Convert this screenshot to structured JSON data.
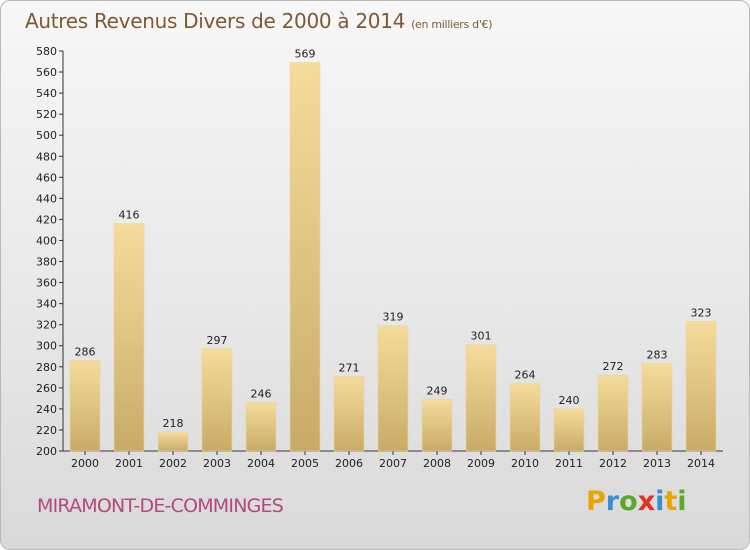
{
  "title": "Autres Revenus Divers de 2000 à 2014",
  "subtitle": "(en milliers d'€)",
  "place_name": "MIRAMONT-DE-COMMINGES",
  "logo": {
    "letters": [
      "P",
      "r",
      "o",
      "x",
      "i",
      "t",
      "i"
    ],
    "colors": [
      "#e8a400",
      "#3a8fd1",
      "#5aa82c",
      "#e0301e",
      "#3a8fd1",
      "#e8a400",
      "#5aa82c"
    ]
  },
  "chart_data": {
    "type": "bar",
    "title": "Autres Revenus Divers de 2000 à 2014",
    "subtitle": "(en milliers d'€)",
    "xlabel": "",
    "ylabel": "",
    "categories": [
      "2000",
      "2001",
      "2002",
      "2003",
      "2004",
      "2005",
      "2006",
      "2007",
      "2008",
      "2009",
      "2010",
      "2011",
      "2012",
      "2013",
      "2014"
    ],
    "values": [
      286,
      416,
      218,
      297,
      246,
      569,
      271,
      319,
      249,
      301,
      264,
      240,
      272,
      283,
      323
    ],
    "ylim": [
      200,
      580
    ],
    "yticks": [
      200,
      220,
      240,
      260,
      280,
      300,
      320,
      340,
      360,
      380,
      400,
      420,
      440,
      460,
      480,
      500,
      520,
      540,
      560,
      580
    ],
    "grid": false,
    "legend": "none",
    "bar_color": "#e8c983"
  }
}
